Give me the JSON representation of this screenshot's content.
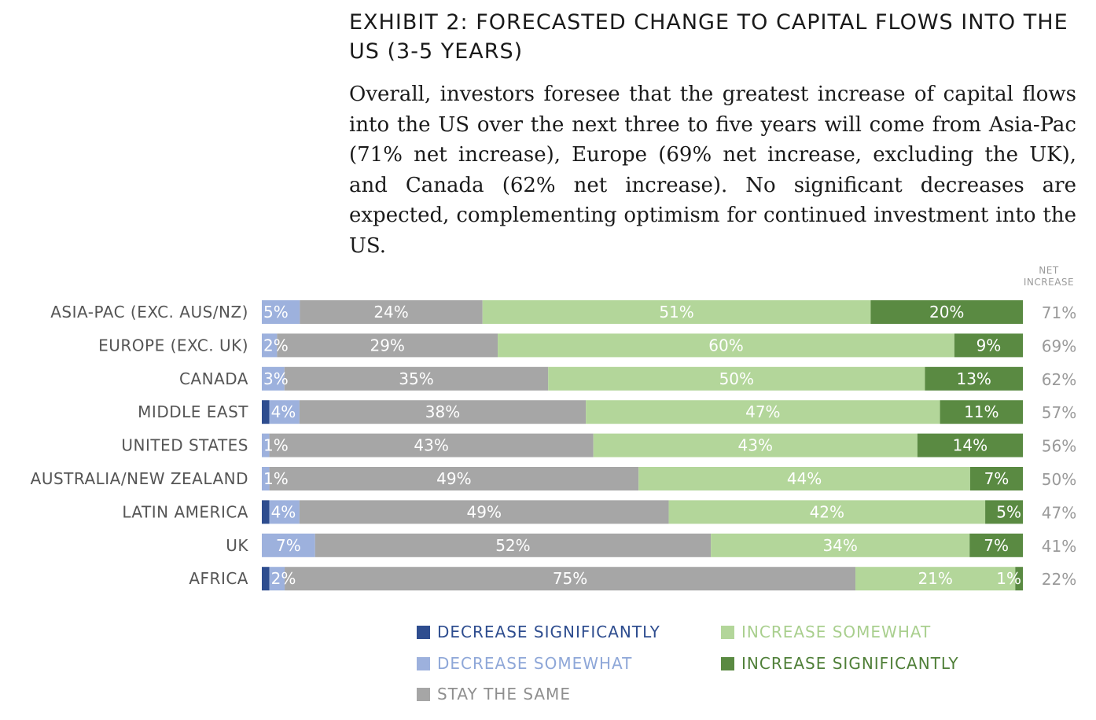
{
  "title": "EXHIBIT 2: FORECASTED CHANGE TO CAPITAL FLOWS INTO THE US (3-5 YEARS)",
  "description": "Overall, investors foresee that the greatest increase of capital flows into the US over the next three to five years will come from Asia-Pac (71% net increase), Europe (69% net increase, excluding the UK), and Canada (62% net increase). No significant decreases are expected, complementing optimism for continued investment into the US.",
  "colors": {
    "decrease_significantly": "#2e4d8f",
    "decrease_somewhat": "#9db1dd",
    "stay_the_same": "#a6a6a6",
    "increase_somewhat": "#b3d69a",
    "increase_significantly": "#5a8a42",
    "label_gray": "#9a9a9a",
    "category_text": "#555555"
  },
  "chart_data": {
    "type": "bar",
    "orientation": "horizontal",
    "stacked": true,
    "net_header": [
      "NET",
      "INCREASE"
    ],
    "categories": [
      "ASIA-PAC (EXC. AUS/NZ)",
      "EUROPE (EXC. UK)",
      "CANADA",
      "MIDDLE EAST",
      "UNITED STATES",
      "AUSTRALIA/NEW ZEALAND",
      "LATIN AMERICA",
      "UK",
      "AFRICA"
    ],
    "series": [
      {
        "name": "DECREASE SIGNIFICANTLY",
        "values": [
          0,
          0,
          0,
          1,
          0,
          0,
          1,
          0,
          1
        ],
        "labels": [
          "",
          "",
          "",
          "",
          "",
          "",
          "",
          "",
          ""
        ]
      },
      {
        "name": "DECREASE SOMEWHAT",
        "values": [
          5,
          2,
          3,
          4,
          1,
          1,
          4,
          7,
          2
        ],
        "labels": [
          "5%",
          "2%",
          "3%",
          "4%",
          "1%",
          "1%",
          "4%",
          "7%",
          "2%"
        ]
      },
      {
        "name": "STAY THE SAME",
        "values": [
          24,
          29,
          35,
          38,
          43,
          49,
          49,
          52,
          75
        ],
        "labels": [
          "24%",
          "29%",
          "35%",
          "38%",
          "43%",
          "49%",
          "49%",
          "52%",
          "75%"
        ]
      },
      {
        "name": "INCREASE SOMEWHAT",
        "values": [
          51,
          60,
          50,
          47,
          43,
          44,
          42,
          34,
          21
        ],
        "labels": [
          "51%",
          "60%",
          "50%",
          "47%",
          "43%",
          "44%",
          "42%",
          "34%",
          "21%"
        ]
      },
      {
        "name": "INCREASE SIGNIFICANTLY",
        "values": [
          20,
          9,
          13,
          11,
          14,
          7,
          5,
          7,
          1
        ],
        "labels": [
          "20%",
          "9%",
          "13%",
          "11%",
          "14%",
          "7%",
          "5%",
          "7%",
          "1%"
        ]
      }
    ],
    "net_increase": [
      "71%",
      "69%",
      "62%",
      "57%",
      "56%",
      "50%",
      "47%",
      "41%",
      "22%"
    ],
    "xlim": [
      0,
      100
    ]
  },
  "legend": [
    {
      "label": "DECREASE SIGNIFICANTLY",
      "color": "#2e4d8f",
      "text_color": "#2e4d8f"
    },
    {
      "label": "INCREASE SOMEWHAT",
      "color": "#b3d69a",
      "text_color": "#a9cf8e"
    },
    {
      "label": "DECREASE SOMEWHAT",
      "color": "#9db1dd",
      "text_color": "#8ea7d8"
    },
    {
      "label": "INCREASE SIGNIFICANTLY",
      "color": "#5a8a42",
      "text_color": "#4f7f38"
    },
    {
      "label": "STAY THE SAME",
      "color": "#a6a6a6",
      "text_color": "#8f8f8f"
    }
  ]
}
